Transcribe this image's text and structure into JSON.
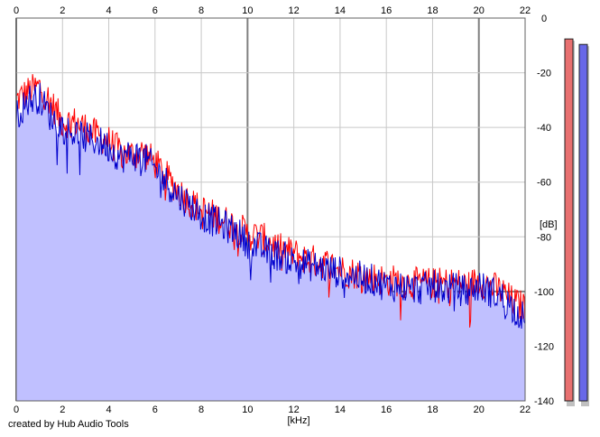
{
  "credit": "created by Hub Audio Tools",
  "chart_data": {
    "type": "line",
    "xlabel": "[kHz]",
    "ylabel": "[dB]",
    "xlim": [
      0,
      22
    ],
    "ylim": [
      -140,
      0
    ],
    "x_ticks": [
      0,
      2,
      4,
      6,
      8,
      10,
      12,
      14,
      16,
      18,
      20,
      22
    ],
    "y_ticks": [
      0,
      -20,
      -40,
      -60,
      -80,
      -100,
      -120,
      -140
    ],
    "grid": true,
    "colors": {
      "left_channel": "#ff0000",
      "right_channel": "#0000cc",
      "fill": "#c0c0ff",
      "grid": "#c8c8c8",
      "major_grid": "#808080"
    },
    "series": [
      {
        "name": "L",
        "color": "#ff0000",
        "x": [
          0,
          0.5,
          1,
          1.5,
          2,
          2.5,
          3,
          3.5,
          4,
          4.5,
          5,
          5.5,
          6,
          6.5,
          7,
          7.5,
          8,
          8.5,
          9,
          9.5,
          10,
          10.5,
          11,
          11.5,
          12,
          12.5,
          13,
          13.5,
          14,
          14.5,
          15,
          15.5,
          16,
          16.5,
          17,
          17.5,
          18,
          18.5,
          19,
          19.5,
          20,
          20.5,
          21,
          21.5,
          22
        ],
        "values": [
          -30,
          -27,
          -25,
          -31,
          -38,
          -38,
          -40,
          -43,
          -45,
          -49,
          -50,
          -49,
          -53,
          -58,
          -63,
          -67,
          -70,
          -72,
          -74,
          -76,
          -79,
          -80,
          -82,
          -85,
          -86,
          -88,
          -89,
          -90,
          -92,
          -93,
          -94,
          -95,
          -96,
          -96,
          -97,
          -97,
          -97,
          -97,
          -97,
          -98,
          -96,
          -98,
          -100,
          -104,
          -106
        ]
      },
      {
        "name": "R",
        "color": "#0000cc",
        "x": [
          0,
          0.5,
          1,
          1.5,
          2,
          2.5,
          3,
          3.5,
          4,
          4.5,
          5,
          5.5,
          6,
          6.5,
          7,
          7.5,
          8,
          8.5,
          9,
          9.5,
          10,
          10.5,
          11,
          11.5,
          12,
          12.5,
          13,
          13.5,
          14,
          14.5,
          15,
          15.5,
          16,
          16.5,
          17,
          17.5,
          18,
          18.5,
          19,
          19.5,
          20,
          20.5,
          21,
          21.5,
          22
        ],
        "values": [
          -36,
          -30,
          -29,
          -36,
          -40,
          -42,
          -44,
          -45,
          -47,
          -51,
          -50,
          -51,
          -55,
          -60,
          -65,
          -68,
          -72,
          -74,
          -76,
          -78,
          -82,
          -84,
          -86,
          -87,
          -89,
          -90,
          -91,
          -92,
          -93,
          -94,
          -95,
          -96,
          -98,
          -98,
          -99,
          -99,
          -98,
          -99,
          -99,
          -100,
          -98,
          -100,
          -102,
          -106,
          -110
        ]
      }
    ],
    "noise_amplitude_db": 6,
    "level_meters": [
      {
        "channel": "L",
        "level_db": -5,
        "color": "#e87070"
      },
      {
        "channel": "R",
        "level_db": -7,
        "color": "#6868e8"
      }
    ]
  }
}
